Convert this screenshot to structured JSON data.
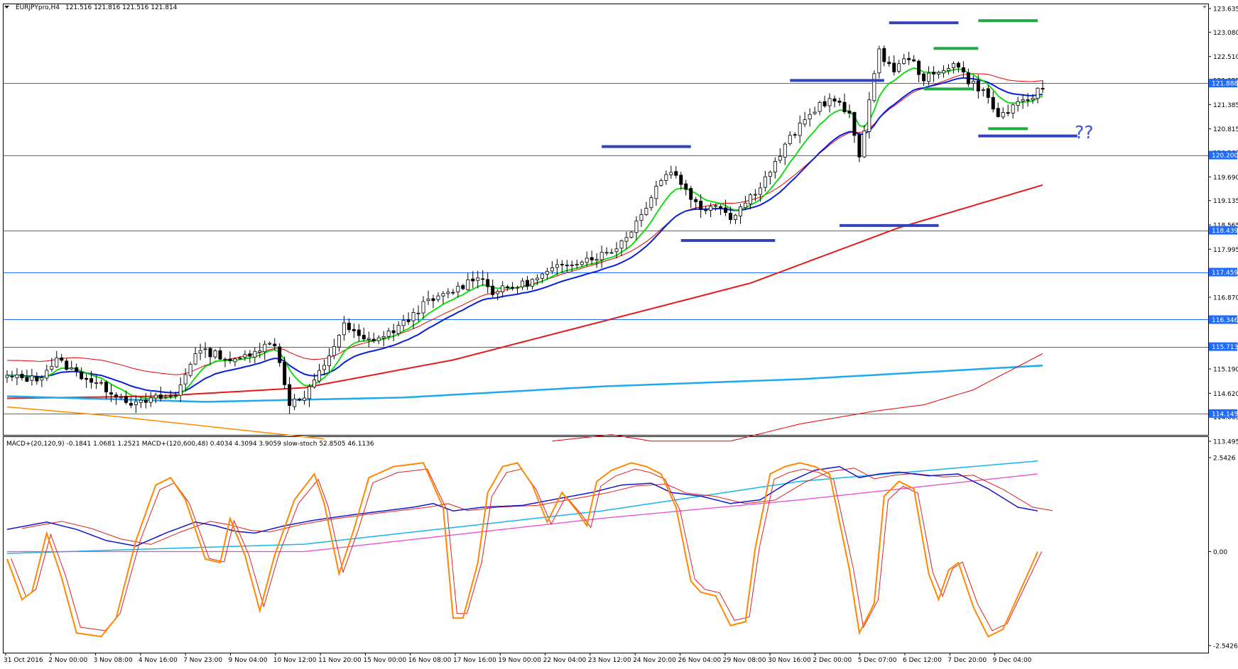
{
  "window": {
    "title": "EURJPYpro,H4",
    "ohlc": "121.516 121.816 121.516 121.814",
    "dropdown_icon": "triangle-down-icon"
  },
  "annotation": {
    "question_marks": "??"
  },
  "colors": {
    "background": "#ffffff",
    "axis": "#000000",
    "grid_line": "#1e6bff",
    "bull": "#ffffff",
    "bear": "#000000",
    "ema_fast": "#00dd00",
    "ema_mid": "#0a1fd6",
    "envelope": "#e60000",
    "ma_slow_red": "#e31a1a",
    "ma_cyan": "#20aaee",
    "ma_orange": "#ff8c00",
    "level_blue": "#3344bb",
    "level_green": "#22aa44",
    "price_tag_bg": "#1e6bff",
    "question_color": "#3355dd",
    "macd_blue": "#1515cc",
    "macd_red": "#e02020",
    "stoch_orange": "#ff8800",
    "macd_cyan": "#16b6f0",
    "macd_magenta": "#e94bd0"
  },
  "chart_data": [
    {
      "type": "candlestick",
      "symbol": "EURJPYpro",
      "timeframe": "H4",
      "y_ticks": [
        "123.635",
        "123.080",
        "122.510",
        "121.955",
        "121.385",
        "120.815",
        "120.260",
        "119.690",
        "119.135",
        "118.565",
        "117.995",
        "117.440",
        "116.870",
        "116.315",
        "115.745",
        "115.190",
        "114.620",
        "114.065",
        "113.495"
      ],
      "ylim": [
        113.495,
        123.635
      ],
      "horizontal_levels": [
        {
          "label": "121.888",
          "value": 121.888,
          "tag": true
        },
        {
          "label": "120.200",
          "value": 120.2,
          "tag": true
        },
        {
          "label": "118.439",
          "value": 118.439,
          "tag": true
        },
        {
          "label": "117.459",
          "value": 117.459,
          "tag": true
        },
        {
          "label": "116.346",
          "value": 116.346,
          "tag": true
        },
        {
          "label": "115.713",
          "value": 115.713,
          "tag": true
        },
        {
          "label": "114.145",
          "value": 114.145,
          "tag": true
        }
      ],
      "x_ticks": [
        "31 Oct 2016",
        "2 Nov 00:00",
        "3 Nov 08:00",
        "4 Nov 16:00",
        "7 Nov 23:00",
        "9 Nov 04:00",
        "10 Nov 12:00",
        "11 Nov 20:00",
        "15 Nov 00:00",
        "16 Nov 08:00",
        "17 Nov 16:00",
        "19 Nov 00:00",
        "22 Nov 04:00",
        "23 Nov 12:00",
        "24 Nov 20:00",
        "26 Nov 04:00",
        "29 Nov 08:00",
        "30 Nov 16:00",
        "2 Dec 00:00",
        "5 Dec 07:00",
        "6 Dec 12:00",
        "7 Dec 20:00",
        "9 Dec 04:00"
      ],
      "close_path": [
        [
          0,
          115.0
        ],
        [
          6,
          114.95
        ],
        [
          10,
          115.4
        ],
        [
          14,
          115.1
        ],
        [
          18,
          114.85
        ],
        [
          22,
          114.6
        ],
        [
          26,
          114.35
        ],
        [
          30,
          114.5
        ],
        [
          34,
          114.55
        ],
        [
          38,
          115.6
        ],
        [
          42,
          115.55
        ],
        [
          46,
          115.35
        ],
        [
          50,
          115.65
        ],
        [
          54,
          115.8
        ],
        [
          57,
          114.4
        ],
        [
          60,
          114.5
        ],
        [
          64,
          115.3
        ],
        [
          68,
          116.2
        ],
        [
          72,
          115.85
        ],
        [
          76,
          115.95
        ],
        [
          80,
          116.25
        ],
        [
          84,
          116.7
        ],
        [
          88,
          116.9
        ],
        [
          92,
          117.15
        ],
        [
          95,
          117.4
        ],
        [
          98,
          117.0
        ],
        [
          102,
          117.1
        ],
        [
          106,
          117.25
        ],
        [
          110,
          117.5
        ],
        [
          114,
          117.7
        ],
        [
          118,
          117.8
        ],
        [
          122,
          117.95
        ],
        [
          125,
          118.3
        ],
        [
          128,
          118.8
        ],
        [
          131,
          119.5
        ],
        [
          134,
          119.85
        ],
        [
          137,
          119.4
        ],
        [
          140,
          118.9
        ],
        [
          143,
          119.1
        ],
        [
          146,
          118.75
        ],
        [
          149,
          119.1
        ],
        [
          152,
          119.5
        ],
        [
          155,
          120.0
        ],
        [
          158,
          120.6
        ],
        [
          161,
          121.0
        ],
        [
          164,
          121.4
        ],
        [
          167,
          121.5
        ],
        [
          170,
          121.1
        ],
        [
          172,
          120.2
        ],
        [
          174,
          121.5
        ],
        [
          176,
          122.6
        ],
        [
          179,
          122.2
        ],
        [
          182,
          122.5
        ],
        [
          185,
          122.0
        ],
        [
          188,
          122.1
        ],
        [
          191,
          122.4
        ],
        [
          194,
          121.95
        ],
        [
          197,
          121.7
        ],
        [
          200,
          121.1
        ],
        [
          203,
          121.3
        ],
        [
          206,
          121.5
        ],
        [
          209,
          121.8
        ]
      ],
      "candle_count": 210,
      "overlays": [
        {
          "name": "ema-fast",
          "color": "#00dd00"
        },
        {
          "name": "ema-mid",
          "color": "#0a1fd6"
        },
        {
          "name": "envelope-upper",
          "color": "#e60000"
        },
        {
          "name": "ma-slow-red",
          "color": "#e31a1a"
        },
        {
          "name": "ma-cyan",
          "color": "#20aaee"
        },
        {
          "name": "ma-orange",
          "color": "#ff8c00"
        }
      ],
      "drawn_levels": [
        {
          "color": "blue",
          "bars": [
            120,
            138
          ],
          "value": 120.4
        },
        {
          "color": "blue",
          "bars": [
            158,
            177
          ],
          "value": 121.95
        },
        {
          "color": "blue",
          "bars": [
            136,
            155
          ],
          "value": 118.2
        },
        {
          "color": "blue",
          "bars": [
            168,
            188
          ],
          "value": 118.55
        },
        {
          "color": "blue",
          "bars": [
            178,
            192
          ],
          "value": 123.3
        },
        {
          "color": "blue",
          "bars": [
            196,
            216
          ],
          "value": 120.65
        },
        {
          "color": "green",
          "bars": [
            196,
            208
          ],
          "value": 123.35
        },
        {
          "color": "green",
          "bars": [
            187,
            196
          ],
          "value": 122.7
        },
        {
          "color": "green",
          "bars": [
            185,
            195
          ],
          "value": 121.75
        },
        {
          "color": "green",
          "bars": [
            198,
            206
          ],
          "value": 120.82
        }
      ]
    },
    {
      "type": "line",
      "title": "MACD+(20,120,9) -0.1841 1.0681 1.2521  MACD+(120,600,48) 0.4034 4.3094 3.9059  slow-stoch 52.8505 46.1136",
      "y_ticks": [
        "2.5426",
        "0.00",
        "-2.5426"
      ],
      "ylim": [
        -2.5426,
        2.5426
      ],
      "series": [
        {
          "color": "#ff8800",
          "values": [
            [
              0,
              -0.2
            ],
            [
              3,
              -1.3
            ],
            [
              5,
              -1.1
            ],
            [
              8,
              0.5
            ],
            [
              11,
              -0.7
            ],
            [
              14,
              -2.2
            ],
            [
              19,
              -2.3
            ],
            [
              22,
              -1.8
            ],
            [
              26,
              0.3
            ],
            [
              30,
              1.8
            ],
            [
              33,
              2.0
            ],
            [
              36,
              1.4
            ],
            [
              40,
              -0.2
            ],
            [
              43,
              -0.3
            ],
            [
              45,
              0.9
            ],
            [
              48,
              -0.1
            ],
            [
              51,
              -1.6
            ],
            [
              54,
              -0.1
            ],
            [
              58,
              1.4
            ],
            [
              62,
              2.1
            ],
            [
              64,
              1.3
            ],
            [
              67,
              -0.6
            ],
            [
              70,
              0.6
            ],
            [
              73,
              2.0
            ],
            [
              78,
              2.3
            ],
            [
              84,
              2.4
            ],
            [
              88,
              1.2
            ],
            [
              90,
              -1.8
            ],
            [
              92,
              -1.8
            ],
            [
              95,
              -0.3
            ],
            [
              97,
              1.6
            ],
            [
              100,
              2.3
            ],
            [
              103,
              2.4
            ],
            [
              106,
              1.8
            ],
            [
              109,
              0.8
            ],
            [
              112,
              1.6
            ],
            [
              115,
              1.1
            ],
            [
              117,
              0.7
            ],
            [
              119,
              1.9
            ],
            [
              122,
              2.2
            ],
            [
              126,
              2.4
            ],
            [
              129,
              2.3
            ],
            [
              132,
              2.1
            ],
            [
              135,
              1.2
            ],
            [
              138,
              -0.8
            ],
            [
              140,
              -1.1
            ],
            [
              143,
              -1.2
            ],
            [
              146,
              -2.0
            ],
            [
              149,
              -1.9
            ],
            [
              151,
              0.1
            ],
            [
              154,
              2.1
            ],
            [
              157,
              2.3
            ],
            [
              160,
              2.4
            ],
            [
              163,
              2.3
            ],
            [
              166,
              2.1
            ],
            [
              170,
              -0.5
            ],
            [
              172,
              -2.2
            ],
            [
              175,
              -1.4
            ],
            [
              177,
              1.5
            ],
            [
              180,
              1.9
            ],
            [
              183,
              1.7
            ],
            [
              186,
              -0.6
            ],
            [
              188,
              -1.3
            ],
            [
              190,
              -0.5
            ],
            [
              192,
              -0.3
            ],
            [
              195,
              -1.5
            ],
            [
              198,
              -2.3
            ],
            [
              201,
              -2.1
            ],
            [
              204,
              -1.2
            ],
            [
              208,
              0.0
            ]
          ]
        },
        {
          "color": "#1515cc",
          "values": [
            [
              0,
              0.6
            ],
            [
              8,
              0.8
            ],
            [
              14,
              0.6
            ],
            [
              20,
              0.3
            ],
            [
              26,
              0.15
            ],
            [
              32,
              0.5
            ],
            [
              38,
              0.8
            ],
            [
              42,
              0.7
            ],
            [
              46,
              0.55
            ],
            [
              50,
              0.5
            ],
            [
              56,
              0.7
            ],
            [
              62,
              0.85
            ],
            [
              70,
              1.0
            ],
            [
              76,
              1.1
            ],
            [
              82,
              1.2
            ],
            [
              86,
              1.3
            ],
            [
              90,
              1.1
            ],
            [
              96,
              1.2
            ],
            [
              104,
              1.25
            ],
            [
              112,
              1.45
            ],
            [
              118,
              1.6
            ],
            [
              124,
              1.8
            ],
            [
              130,
              1.85
            ],
            [
              134,
              1.6
            ],
            [
              140,
              1.5
            ],
            [
              146,
              1.3
            ],
            [
              152,
              1.4
            ],
            [
              158,
              1.9
            ],
            [
              163,
              2.2
            ],
            [
              168,
              2.3
            ],
            [
              172,
              2.0
            ],
            [
              176,
              2.1
            ],
            [
              180,
              2.15
            ],
            [
              186,
              2.05
            ],
            [
              192,
              2.1
            ],
            [
              198,
              1.7
            ],
            [
              204,
              1.2
            ],
            [
              208,
              1.1
            ]
          ]
        }
      ]
    }
  ]
}
